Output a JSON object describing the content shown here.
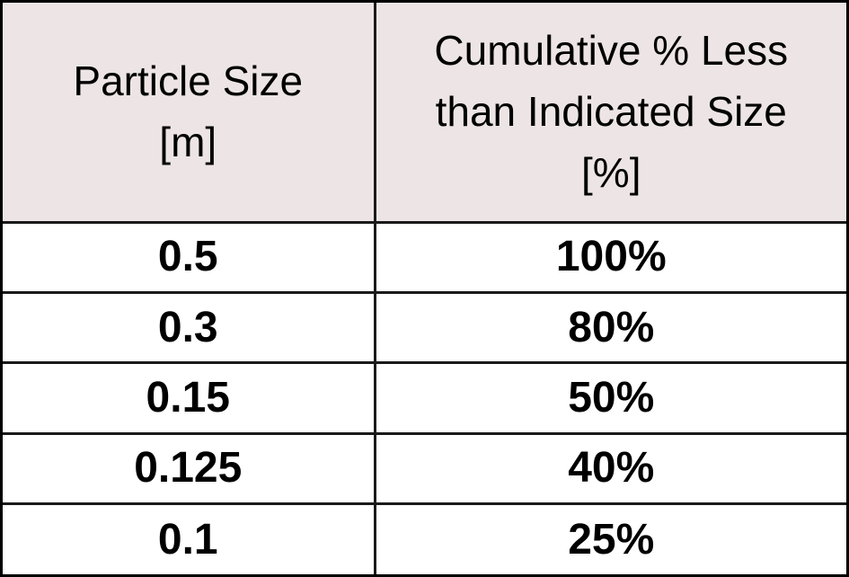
{
  "table": {
    "headers": [
      {
        "lines": [
          "Particle Size",
          "[m]"
        ]
      },
      {
        "lines": [
          "Cumulative % Less",
          "than Indicated Size",
          "[%]"
        ]
      }
    ],
    "rows": [
      {
        "particle_size": "0.5",
        "cumulative_pct": "100%"
      },
      {
        "particle_size": "0.3",
        "cumulative_pct": "80%"
      },
      {
        "particle_size": "0.15",
        "cumulative_pct": "50%"
      },
      {
        "particle_size": "0.125",
        "cumulative_pct": "40%"
      },
      {
        "particle_size": "0.1",
        "cumulative_pct": "25%"
      }
    ]
  },
  "colors": {
    "header_background": "#ede5e5",
    "border": "#1a1a1a",
    "text": "#000000"
  }
}
